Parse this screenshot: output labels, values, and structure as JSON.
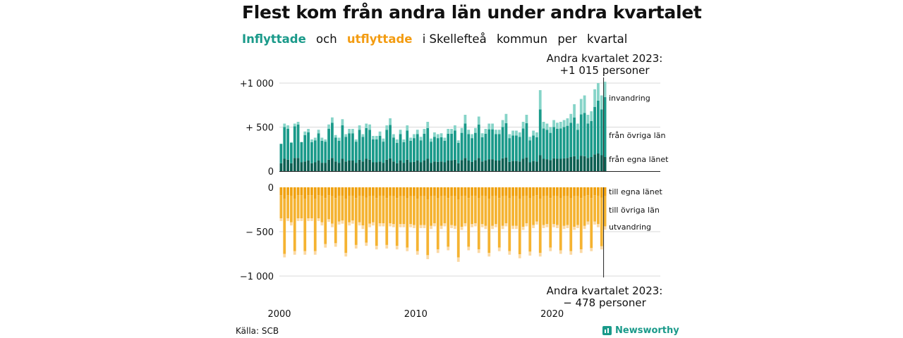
{
  "title": "Flest kom från andra län under andra kvartalet",
  "subtitle": {
    "inflyttade": "Inflyttade",
    "och": "och",
    "utflyttade": "utflyttade",
    "rest1": "i Skellefteå",
    "rest2": "kommun",
    "rest3": "per",
    "rest4": "kvartal"
  },
  "annotation_top": {
    "line1": "Andra kvartalet 2023:",
    "line2": "+1 015 personer"
  },
  "annotation_bottom": {
    "line1": "Andra kvartalet 2023:",
    "line2": "−  478 personer"
  },
  "source": "Källa: SCB",
  "brand": "Newsworthy",
  "colors": {
    "in_egna": "#0c5f52",
    "in_ovriga": "#1a9a8a",
    "in_invandring": "#86d4c8",
    "ut_egna": "#f0a10f",
    "ut_ovriga": "#f5b331",
    "ut_utvandring": "#fbd9a4",
    "title_teal": "#1a9a8a",
    "title_orange": "#f39c12"
  },
  "chart_data": {
    "type": "bar",
    "stacked": true,
    "diverging": true,
    "x_start": "2000 Q1",
    "x_end": "2023 Q2",
    "x_ticks": [
      "2000",
      "2010",
      "2020"
    ],
    "y_ticks_top": [
      "+1 000",
      "+  500",
      "0"
    ],
    "y_ticks_bottom": [
      "0",
      "−  500",
      "−1 000"
    ],
    "ylim_top": [
      0,
      1000
    ],
    "ylim_bottom": [
      -1000,
      0
    ],
    "grid": true,
    "series_labels": {
      "in_egna": "från egna länet",
      "in_ovriga": "från övriga län",
      "in_invandring": "invandring",
      "ut_egna": "till egna länet",
      "ut_ovriga": "till övriga län",
      "ut_utvandring": "utvandring"
    },
    "in_total": [
      300,
      540,
      520,
      330,
      540,
      560,
      320,
      450,
      480,
      360,
      380,
      470,
      380,
      360,
      530,
      610,
      410,
      380,
      590,
      420,
      480,
      480,
      360,
      520,
      420,
      540,
      530,
      400,
      400,
      450,
      370,
      520,
      600,
      420,
      360,
      470,
      360,
      520,
      380,
      420,
      470,
      390,
      480,
      560,
      370,
      440,
      420,
      430,
      380,
      480,
      480,
      520,
      350,
      490,
      640,
      470,
      420,
      490,
      620,
      430,
      480,
      540,
      540,
      470,
      470,
      580,
      650,
      420,
      460,
      460,
      440,
      560,
      640,
      390,
      460,
      440,
      920,
      560,
      540,
      500,
      580,
      550,
      560,
      580,
      600,
      650,
      760,
      540,
      820,
      860,
      640,
      680,
      930,
      1000,
      860,
      1015
    ],
    "in_egna": [
      90,
      140,
      130,
      90,
      150,
      150,
      100,
      110,
      120,
      90,
      100,
      120,
      95,
      95,
      130,
      150,
      110,
      95,
      140,
      110,
      120,
      120,
      95,
      130,
      110,
      140,
      130,
      100,
      100,
      110,
      95,
      130,
      145,
      110,
      90,
      120,
      95,
      130,
      100,
      105,
      120,
      100,
      120,
      140,
      95,
      110,
      105,
      110,
      100,
      120,
      120,
      130,
      90,
      125,
      150,
      120,
      105,
      125,
      150,
      110,
      120,
      135,
      135,
      120,
      120,
      145,
      155,
      105,
      115,
      115,
      110,
      140,
      155,
      100,
      115,
      110,
      180,
      140,
      135,
      125,
      145,
      140,
      140,
      145,
      150,
      160,
      170,
      135,
      175,
      170,
      150,
      160,
      190,
      200,
      180,
      160
    ],
    "in_ovriga": [
      220,
      360,
      350,
      230,
      360,
      380,
      230,
      300,
      320,
      240,
      250,
      310,
      250,
      240,
      350,
      400,
      270,
      250,
      380,
      280,
      310,
      310,
      240,
      340,
      280,
      350,
      340,
      260,
      260,
      290,
      240,
      340,
      380,
      270,
      230,
      300,
      235,
      330,
      245,
      270,
      300,
      250,
      305,
      350,
      240,
      280,
      270,
      275,
      245,
      305,
      305,
      330,
      230,
      310,
      390,
      300,
      270,
      310,
      380,
      275,
      305,
      340,
      340,
      300,
      300,
      355,
      390,
      270,
      290,
      290,
      280,
      345,
      390,
      250,
      290,
      275,
      520,
      345,
      335,
      310,
      355,
      340,
      345,
      355,
      365,
      390,
      440,
      335,
      470,
      490,
      390,
      410,
      540,
      600,
      520,
      680
    ],
    "ut_total": [
      -380,
      -790,
      -380,
      -430,
      -760,
      -380,
      -380,
      -760,
      -380,
      -380,
      -760,
      -380,
      -430,
      -680,
      -390,
      -450,
      -670,
      -420,
      -410,
      -780,
      -430,
      -410,
      -690,
      -430,
      -470,
      -660,
      -450,
      -430,
      -700,
      -440,
      -440,
      -690,
      -440,
      -450,
      -700,
      -450,
      -450,
      -720,
      -450,
      -460,
      -760,
      -460,
      -460,
      -810,
      -470,
      -440,
      -740,
      -470,
      -440,
      -710,
      -460,
      -470,
      -840,
      -480,
      -440,
      -710,
      -450,
      -440,
      -740,
      -450,
      -470,
      -780,
      -470,
      -450,
      -720,
      -470,
      -440,
      -760,
      -470,
      -470,
      -800,
      -480,
      -440,
      -770,
      -460,
      -420,
      -780,
      -460,
      -450,
      -720,
      -450,
      -460,
      -750,
      -470,
      -460,
      -760,
      -480,
      -460,
      -740,
      -470,
      -420,
      -720,
      -420,
      -450,
      -700,
      -478
    ],
    "ut_egna": [
      -90,
      -130,
      -90,
      -95,
      -130,
      -90,
      -90,
      -130,
      -90,
      -90,
      -130,
      -90,
      -95,
      -120,
      -90,
      -100,
      -120,
      -95,
      -95,
      -130,
      -95,
      -95,
      -120,
      -95,
      -100,
      -115,
      -100,
      -95,
      -120,
      -95,
      -95,
      -120,
      -95,
      -100,
      -120,
      -100,
      -100,
      -125,
      -100,
      -100,
      -130,
      -100,
      -100,
      -135,
      -100,
      -95,
      -125,
      -100,
      -95,
      -120,
      -100,
      -100,
      -140,
      -100,
      -95,
      -120,
      -95,
      -95,
      -125,
      -95,
      -100,
      -130,
      -100,
      -95,
      -120,
      -100,
      -95,
      -125,
      -100,
      -100,
      -130,
      -100,
      -95,
      -125,
      -100,
      -90,
      -130,
      -100,
      -95,
      -120,
      -95,
      -100,
      -125,
      -100,
      -100,
      -125,
      -100,
      -100,
      -120,
      -100,
      -90,
      -120,
      -90,
      -95,
      -115,
      -100
    ],
    "ut_ovriga": [
      -260,
      -620,
      -260,
      -300,
      -590,
      -260,
      -260,
      -590,
      -260,
      -260,
      -590,
      -260,
      -300,
      -520,
      -270,
      -310,
      -510,
      -290,
      -280,
      -610,
      -300,
      -280,
      -530,
      -300,
      -330,
      -510,
      -310,
      -300,
      -540,
      -310,
      -310,
      -530,
      -310,
      -315,
      -540,
      -315,
      -315,
      -555,
      -315,
      -325,
      -590,
      -325,
      -325,
      -630,
      -335,
      -310,
      -575,
      -335,
      -310,
      -550,
      -325,
      -335,
      -650,
      -345,
      -310,
      -550,
      -320,
      -310,
      -575,
      -320,
      -335,
      -610,
      -335,
      -320,
      -560,
      -335,
      -310,
      -595,
      -335,
      -335,
      -625,
      -345,
      -310,
      -600,
      -325,
      -295,
      -610,
      -325,
      -320,
      -560,
      -320,
      -325,
      -585,
      -335,
      -325,
      -595,
      -345,
      -325,
      -580,
      -335,
      -295,
      -565,
      -295,
      -320,
      -550,
      -340
    ]
  }
}
